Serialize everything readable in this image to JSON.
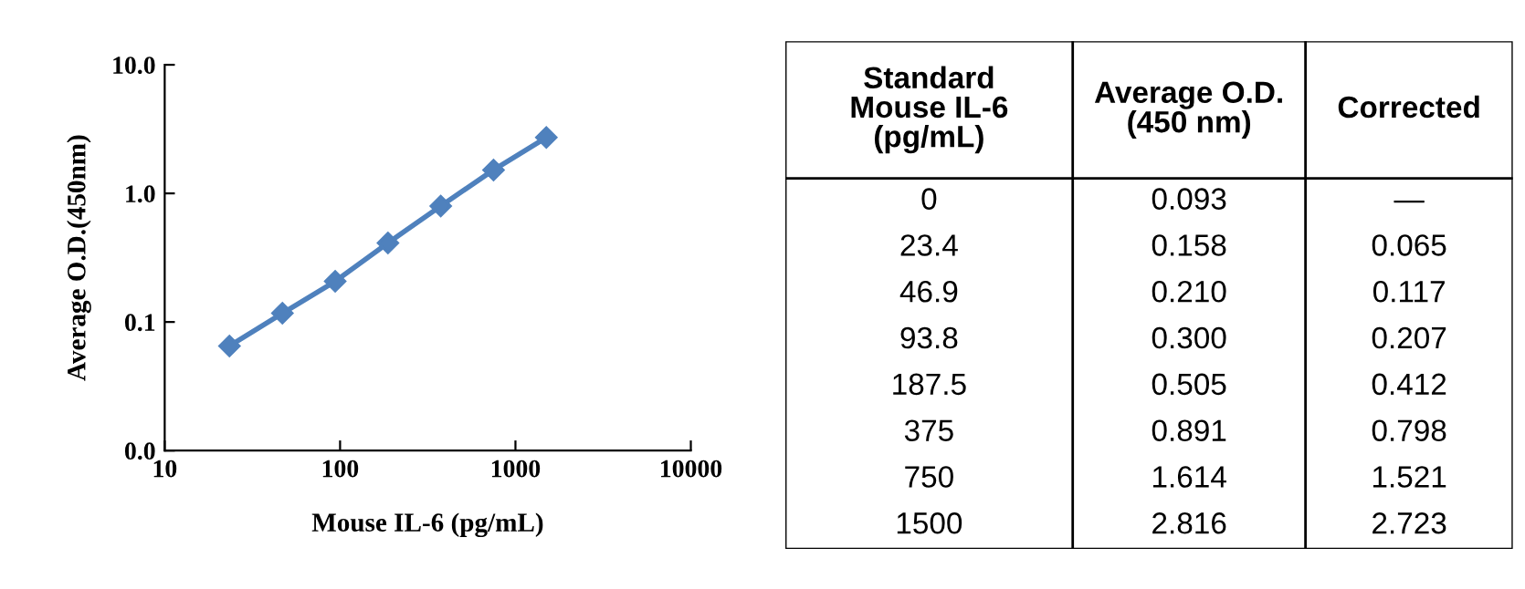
{
  "chart_data": [
    {
      "type": "line",
      "xlabel": "Mouse IL-6 (pg/mL)",
      "ylabel": "Average O.D.(450nm)",
      "log": "xy",
      "x": [
        23.4,
        46.9,
        93.8,
        187.5,
        375,
        750,
        1500
      ],
      "series": [
        {
          "color": "#4f81bd",
          "values": [
            0.065,
            0.117,
            0.207,
            0.412,
            0.798,
            1.521,
            2.723
          ]
        }
      ],
      "xlim": [
        10,
        10000
      ],
      "xticks": [
        10,
        100,
        1000,
        10000
      ],
      "ylim": [
        0.01,
        10
      ],
      "yticks": [
        {
          "value": 0.01,
          "label": "0.0"
        },
        0.1,
        {
          "value": 1,
          "label": "1.0"
        },
        {
          "value": 10,
          "label": "10.0"
        }
      ],
      "marker": "diamond",
      "line_style": "solid",
      "grid": false
    },
    {
      "type": "other",
      "categories": [
        "Standard\nMouse IL-6\n(pg/mL)",
        "Average O.D.\n(450 nm)",
        "Corrected"
      ],
      "annotations": [
        "0",
        "0.093",
        "—",
        "23.4",
        "0.158",
        "0.065",
        "46.9",
        "0.210",
        "0.117",
        "93.8",
        "0.300",
        "0.207",
        "187.5",
        "0.505",
        "0.412",
        "375",
        "0.891",
        "0.798",
        "750",
        "1.614",
        "1.521",
        "1500",
        "2.816",
        "2.723"
      ]
    }
  ]
}
